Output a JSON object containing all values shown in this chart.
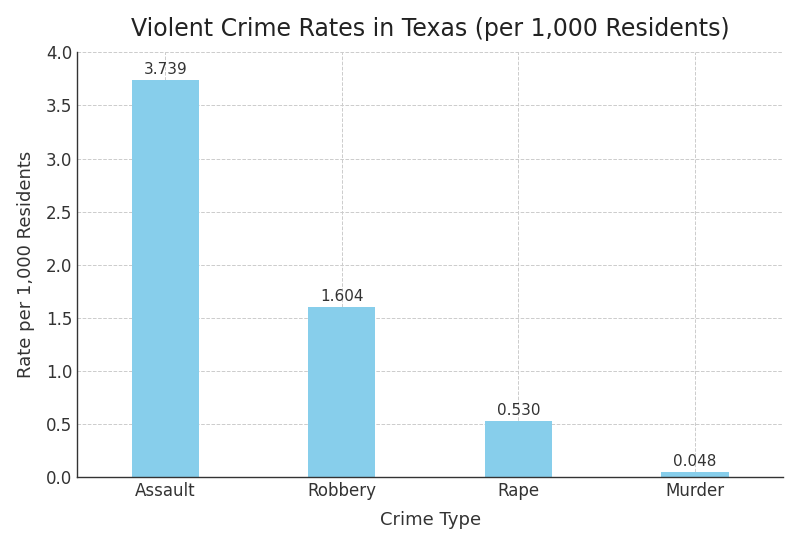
{
  "categories": [
    "Assault",
    "Robbery",
    "Rape",
    "Murder"
  ],
  "values": [
    3.739,
    1.604,
    0.53,
    0.048
  ],
  "bar_color": "#87CEEB",
  "bar_edgecolor": "none",
  "title": "Violent Crime Rates in Texas (per 1,000 Residents)",
  "xlabel": "Crime Type",
  "ylabel": "Rate per 1,000 Residents",
  "ylim": [
    0,
    4.0
  ],
  "yticks": [
    0.0,
    0.5,
    1.0,
    1.5,
    2.0,
    2.5,
    3.0,
    3.5,
    4.0
  ],
  "title_fontsize": 17,
  "label_fontsize": 13,
  "tick_fontsize": 12,
  "annotation_fontsize": 11,
  "background_color": "#ffffff",
  "grid_color": "#cccccc",
  "bar_width": 0.38
}
